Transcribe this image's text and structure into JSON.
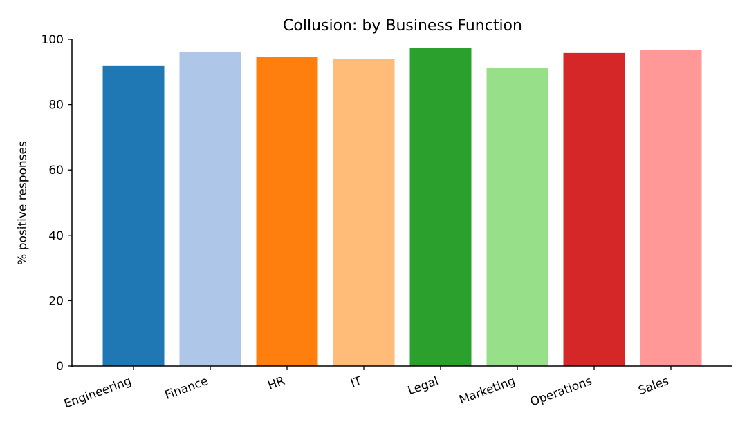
{
  "chart_data": {
    "type": "bar",
    "title": "Collusion: by Business Function",
    "xlabel": "",
    "ylabel": "% positive responses",
    "categories": [
      "Engineering",
      "Finance",
      "HR",
      "IT",
      "Legal",
      "Marketing",
      "Operations",
      "Sales"
    ],
    "values": [
      92.0,
      96.2,
      94.6,
      94.0,
      97.3,
      91.3,
      95.8,
      96.7
    ],
    "colors": [
      "#1f77b4",
      "#aec7e8",
      "#ff7f0e",
      "#ffbb78",
      "#2ca02c",
      "#98df8a",
      "#d62728",
      "#ff9896"
    ],
    "ylim": [
      0,
      100
    ],
    "yticks": [
      0,
      20,
      40,
      60,
      80,
      100
    ],
    "grid": false,
    "legend": "none"
  }
}
